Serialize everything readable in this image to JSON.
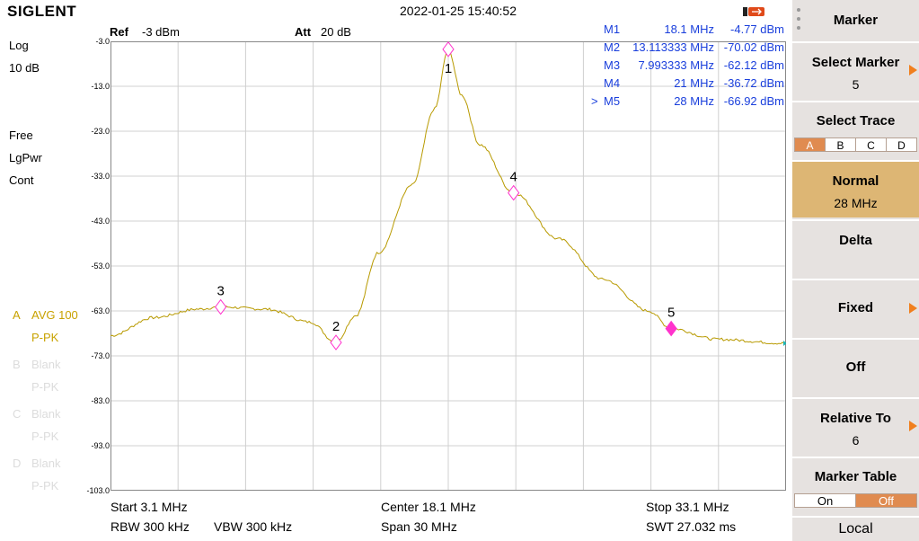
{
  "header": {
    "brand": "SIGLENT",
    "datetime": "2022-01-25 15:40:52",
    "ref_label": "Ref",
    "ref_value": "-3 dBm",
    "att_label": "Att",
    "att_value": "20 dB"
  },
  "left": {
    "scale_type": "Log",
    "scale_div": "10 dB",
    "sweep": "Free",
    "detector": "LgPwr",
    "mode": "Cont",
    "trace_a": {
      "letter": "A",
      "avg": "AVG 100",
      "det": "P-PK"
    },
    "trace_b": {
      "letter": "B",
      "state": "Blank",
      "det": "P-PK"
    },
    "trace_c": {
      "letter": "C",
      "state": "Blank",
      "det": "P-PK"
    },
    "trace_d": {
      "letter": "D",
      "state": "Blank",
      "det": "P-PK"
    }
  },
  "y_ticks": [
    "-3.0",
    "-13.0",
    "-23.0",
    "-33.0",
    "-43.0",
    "-53.0",
    "-63.0",
    "-73.0",
    "-83.0",
    "-93.0",
    "-103.0"
  ],
  "markers": [
    {
      "id": "M1",
      "freq": "18.1 MHz",
      "level": "-4.77 dBm",
      "sel": ""
    },
    {
      "id": "M2",
      "freq": "13.113333 MHz",
      "level": "-70.02 dBm",
      "sel": ""
    },
    {
      "id": "M3",
      "freq": "7.993333 MHz",
      "level": "-62.12 dBm",
      "sel": ""
    },
    {
      "id": "M4",
      "freq": "21 MHz",
      "level": "-36.72 dBm",
      "sel": ""
    },
    {
      "id": "M5",
      "freq": "28 MHz",
      "level": "-66.92 dBm",
      "sel": ">"
    }
  ],
  "marker_labels": [
    "1",
    "2",
    "3",
    "4",
    "5"
  ],
  "footer": {
    "start": "Start  3.1 MHz",
    "center": "Center  18.1 MHz",
    "stop": "Stop  33.1 MHz",
    "rbw": "RBW  300 kHz",
    "vbw": "VBW  300 kHz",
    "span": "Span   30 MHz",
    "swt": "SWT  27.032 ms"
  },
  "panel": {
    "title": "Marker",
    "select_marker_label": "Select Marker",
    "select_marker_value": "5",
    "select_trace_label": "Select Trace",
    "trace_opts": [
      "A",
      "B",
      "C",
      "D"
    ],
    "normal_label": "Normal",
    "normal_value": "28 MHz",
    "delta_label": "Delta",
    "fixed_label": "Fixed",
    "off_label": "Off",
    "relative_label": "Relative To",
    "relative_value": "6",
    "table_label": "Marker Table",
    "on_label": "On",
    "off_opt_label": "Off",
    "local_label": "Local"
  },
  "chart_data": {
    "type": "line",
    "x_unit": "MHz",
    "y_unit": "dBm",
    "xlim": [
      3.1,
      33.1
    ],
    "ylim": [
      -103,
      -3
    ],
    "series": [
      {
        "values": [
          [
            3.1,
            -68.5
          ],
          [
            5,
            -64.5
          ],
          [
            7,
            -62.6
          ],
          [
            8.0,
            -62.1
          ],
          [
            10,
            -62.6
          ],
          [
            12,
            -65.5
          ],
          [
            13.1,
            -70.0
          ],
          [
            14,
            -64
          ],
          [
            15,
            -50
          ],
          [
            16.5,
            -35
          ],
          [
            17.5,
            -18
          ],
          [
            18.1,
            -4.8
          ],
          [
            18.7,
            -15
          ],
          [
            19.5,
            -26
          ],
          [
            21,
            -36.7
          ],
          [
            23,
            -47
          ],
          [
            25,
            -56
          ],
          [
            27,
            -63
          ],
          [
            28,
            -66.9
          ],
          [
            30,
            -69.3
          ],
          [
            33.1,
            -70.2
          ]
        ]
      }
    ]
  }
}
